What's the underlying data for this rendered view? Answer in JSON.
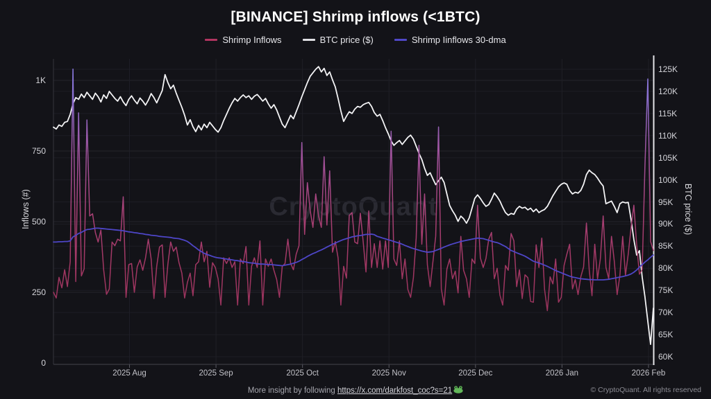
{
  "title": "[BINANCE] Shrimp inflows (<1BTC)",
  "watermark": "CryptoQuant",
  "legend": {
    "items": [
      {
        "label": "Shrimp Inflows",
        "color": "#b13560"
      },
      {
        "label": "BTC price ($)",
        "color": "#e0e0e4"
      },
      {
        "label": "Shrimp Iinflows 30-dma",
        "color": "#5048c8"
      }
    ]
  },
  "axes": {
    "left": {
      "title": "Inflows (#)",
      "ticks": [
        {
          "label": "0",
          "value": 0
        },
        {
          "label": "250",
          "value": 250
        },
        {
          "label": "500",
          "value": 500
        },
        {
          "label": "750",
          "value": 750
        },
        {
          "label": "1K",
          "value": 1000
        }
      ]
    },
    "right": {
      "title": "BTC price ($)",
      "ticks": [
        {
          "label": "60K",
          "value": 60
        },
        {
          "label": "65K",
          "value": 65
        },
        {
          "label": "70K",
          "value": 70
        },
        {
          "label": "75K",
          "value": 75
        },
        {
          "label": "80K",
          "value": 80
        },
        {
          "label": "85K",
          "value": 85
        },
        {
          "label": "90K",
          "value": 90
        },
        {
          "label": "95K",
          "value": 95
        },
        {
          "label": "100K",
          "value": 100
        },
        {
          "label": "105K",
          "value": 105
        },
        {
          "label": "110K",
          "value": 110
        },
        {
          "label": "115K",
          "value": 115
        },
        {
          "label": "120K",
          "value": 120
        },
        {
          "label": "125K",
          "value": 125
        }
      ]
    },
    "x": {
      "ticks": [
        {
          "label": "2025 Aug",
          "index": 27.25
        },
        {
          "label": "2025 Sep",
          "index": 58.25
        },
        {
          "label": "2025 Oct",
          "index": 89.25
        },
        {
          "label": "2025 Nov",
          "index": 120.25
        },
        {
          "label": "2025 Dec",
          "index": 151.25
        },
        {
          "label": "2026 Jan",
          "index": 182.25
        },
        {
          "label": "2026 Feb",
          "index": 213.25
        }
      ]
    }
  },
  "footer": {
    "prefix": "More insight by following ",
    "link": "https://x.com/darkfost_coc?s=21",
    "copyright": "© CryptoQuant. All rights reserved"
  },
  "chart_data": {
    "type": "line",
    "title": "[BINANCE] Shrimp inflows (<1BTC)",
    "x_axis": "daily dates, ~2025 Jul 05 to 2026 Feb 06 (216 points, only month ticks labeled)",
    "left_ylabel": "Inflows (#)",
    "right_ylabel": "BTC price ($)",
    "left_ylim": [
      0,
      1075
    ],
    "right_ylim_k": [
      60,
      126
    ],
    "grid": true,
    "legend_position": "top-center",
    "series": [
      {
        "name": "BTC price ($)",
        "axis": "right",
        "unit": "K$",
        "color": "#f4f4f6",
        "width": 1.8,
        "values": [
          111.9,
          111.5,
          112.4,
          112.1,
          113.0,
          113.2,
          114.8,
          117.2,
          118.6,
          118.2,
          119.4,
          118.6,
          119.8,
          119.0,
          118.2,
          119.6,
          118.8,
          117.6,
          119.2,
          118.4,
          120.0,
          119.2,
          118.4,
          117.8,
          118.8,
          117.6,
          116.8,
          118.2,
          119.0,
          118.0,
          117.2,
          118.5,
          117.8,
          116.9,
          118.0,
          119.5,
          118.6,
          117.4,
          118.8,
          120.2,
          123.8,
          122.0,
          120.6,
          121.4,
          119.6,
          118.0,
          116.4,
          114.6,
          112.4,
          113.6,
          112.0,
          110.9,
          112.3,
          111.3,
          112.6,
          111.8,
          113.0,
          112.2,
          111.4,
          110.8,
          111.8,
          113.4,
          114.8,
          116.2,
          117.4,
          118.4,
          117.8,
          118.6,
          119.2,
          118.6,
          119.0,
          118.2,
          118.9,
          119.3,
          118.6,
          117.8,
          118.4,
          117.2,
          116.2,
          117.0,
          115.8,
          114.2,
          112.6,
          111.8,
          113.2,
          114.6,
          113.8,
          115.4,
          117.0,
          118.8,
          120.4,
          122.0,
          123.4,
          124.2,
          125.0,
          125.6,
          124.4,
          125.2,
          123.6,
          124.4,
          122.6,
          121.0,
          118.4,
          115.6,
          113.2,
          114.4,
          115.4,
          115.0,
          116.0,
          116.6,
          116.4,
          117.0,
          117.3,
          117.5,
          116.6,
          115.2,
          114.4,
          114.8,
          113.4,
          111.8,
          110.4,
          108.8,
          107.8,
          108.4,
          108.9,
          108.0,
          108.8,
          109.6,
          110.1,
          109.2,
          107.6,
          106.0,
          104.6,
          102.6,
          101.0,
          101.6,
          100.2,
          98.9,
          99.8,
          100.6,
          99.4,
          96.8,
          94.2,
          93.0,
          92.0,
          90.6,
          91.8,
          91.2,
          90.2,
          91.4,
          93.6,
          95.8,
          96.6,
          95.8,
          94.8,
          94.0,
          94.4,
          95.6,
          97.0,
          96.2,
          95.2,
          93.8,
          92.6,
          92.0,
          92.4,
          92.2,
          93.4,
          94.0,
          93.6,
          93.8,
          93.2,
          93.6,
          92.8,
          93.4,
          92.6,
          93.0,
          93.3,
          94.0,
          95.2,
          96.4,
          97.4,
          98.4,
          99.0,
          99.3,
          99.0,
          97.6,
          96.8,
          97.2,
          97.0,
          97.6,
          99.0,
          101.2,
          102.2,
          101.6,
          101.2,
          100.4,
          99.4,
          98.6,
          94.6,
          94.9,
          95.2,
          94.0,
          92.6,
          94.6,
          95.0,
          94.8,
          94.9,
          91.0,
          86.5,
          83.0,
          84.0,
          78.0,
          73.5,
          68.0,
          62.8,
          71.0
        ]
      },
      {
        "name": "Shrimp Inflows",
        "axis": "left",
        "unit": "#",
        "color": "gradient:inflow",
        "width": 1.5,
        "values": [
          250,
          230,
          303,
          266,
          330,
          270,
          358,
          1040,
          288,
          885,
          308,
          333,
          860,
          520,
          528,
          462,
          428,
          470,
          330,
          243,
          262,
          428,
          415,
          438,
          432,
          588,
          232,
          348,
          352,
          250,
          340,
          365,
          328,
          372,
          438,
          368,
          228,
          342,
          410,
          418,
          232,
          350,
          428,
          395,
          410,
          355,
          318,
          230,
          285,
          318,
          238,
          348,
          358,
          428,
          358,
          395,
          268,
          355,
          338,
          298,
          205,
          372,
          352,
          372,
          338,
          358,
          205,
          368,
          352,
          412,
          205,
          342,
          372,
          338,
          432,
          205,
          368,
          342,
          368,
          328,
          295,
          232,
          342,
          352,
          438,
          352,
          330,
          385,
          415,
          780,
          455,
          638,
          540,
          480,
          598,
          520,
          480,
          730,
          488,
          680,
          392,
          430,
          372,
          205,
          342,
          300,
          522,
          532,
          428,
          422,
          530,
          428,
          322,
          538,
          338,
          422,
          338,
          432,
          332,
          432,
          338,
          820,
          368,
          345,
          432,
          298,
          368,
          260,
          232,
          302,
          442,
          770,
          420,
          598,
          348,
          270,
          358,
          448,
          835,
          262,
          205,
          332,
          368,
          298,
          325,
          248,
          448,
          328,
          298,
          232,
          368,
          352,
          558,
          372,
          338,
          370,
          438,
          462,
          298,
          335,
          240,
          205,
          345,
          328,
          458,
          432,
          270,
          330,
          228,
          312,
          302,
          218,
          215,
          418,
          338,
          442,
          260,
          185,
          305,
          280,
          368,
          215,
          232,
          345,
          385,
          420,
          262,
          295,
          242,
          305,
          340,
          495,
          330,
          238,
          420,
          298,
          368,
          520,
          338,
          298,
          448,
          360,
          242,
          310,
          448,
          310,
          385,
          480,
          558,
          420,
          314,
          330,
          700,
          1005,
          430,
          398
        ]
      },
      {
        "name": "Shrimp Iinflows 30-dma",
        "axis": "left",
        "unit": "#",
        "color": "#4e46c8",
        "width": 1.8,
        "values": [
          428,
          428,
          429,
          429,
          430,
          430,
          432,
          446,
          452,
          458,
          462,
          468,
          472,
          473,
          475,
          477,
          477,
          476,
          475,
          474,
          473,
          472,
          471,
          470,
          469,
          468,
          466,
          464,
          463,
          461,
          460,
          458,
          457,
          455,
          454,
          452,
          451,
          450,
          448,
          447,
          446,
          445,
          444,
          442,
          441,
          440,
          437,
          434,
          430,
          423,
          415,
          408,
          400,
          394,
          388,
          384,
          381,
          377,
          374,
          372,
          371,
          369,
          368,
          366,
          365,
          363,
          362,
          360,
          359,
          357,
          355,
          354,
          353,
          351,
          350,
          350,
          349,
          348,
          348,
          347,
          346,
          345,
          344,
          346,
          348,
          350,
          353,
          356,
          360,
          366,
          371,
          377,
          382,
          387,
          391,
          396,
          400,
          405,
          410,
          415,
          420,
          424,
          429,
          433,
          437,
          440,
          443,
          446,
          448,
          450,
          451,
          453,
          455,
          455,
          456,
          454,
          448,
          445,
          442,
          439,
          436,
          433,
          430,
          427,
          424,
          420,
          416,
          412,
          408,
          405,
          402,
          399,
          396,
          394,
          392,
          393,
          394,
          398,
          402,
          406,
          410,
          414,
          418,
          421,
          424,
          427,
          430,
          432,
          434,
          436,
          438,
          440,
          442,
          441,
          440,
          437,
          434,
          431,
          428,
          426,
          422,
          417,
          412,
          405,
          398,
          394,
          390,
          386,
          382,
          378,
          372,
          366,
          360,
          357,
          354,
          350,
          346,
          342,
          337,
          332,
          327,
          323,
          319,
          315,
          311,
          307,
          304,
          302,
          300,
          298,
          297,
          296,
          295,
          295,
          294,
          294,
          294,
          294,
          295,
          296,
          298,
          300,
          302,
          304,
          306,
          308,
          311,
          315,
          321,
          329,
          339,
          348,
          357,
          365,
          374,
          382
        ]
      }
    ]
  }
}
